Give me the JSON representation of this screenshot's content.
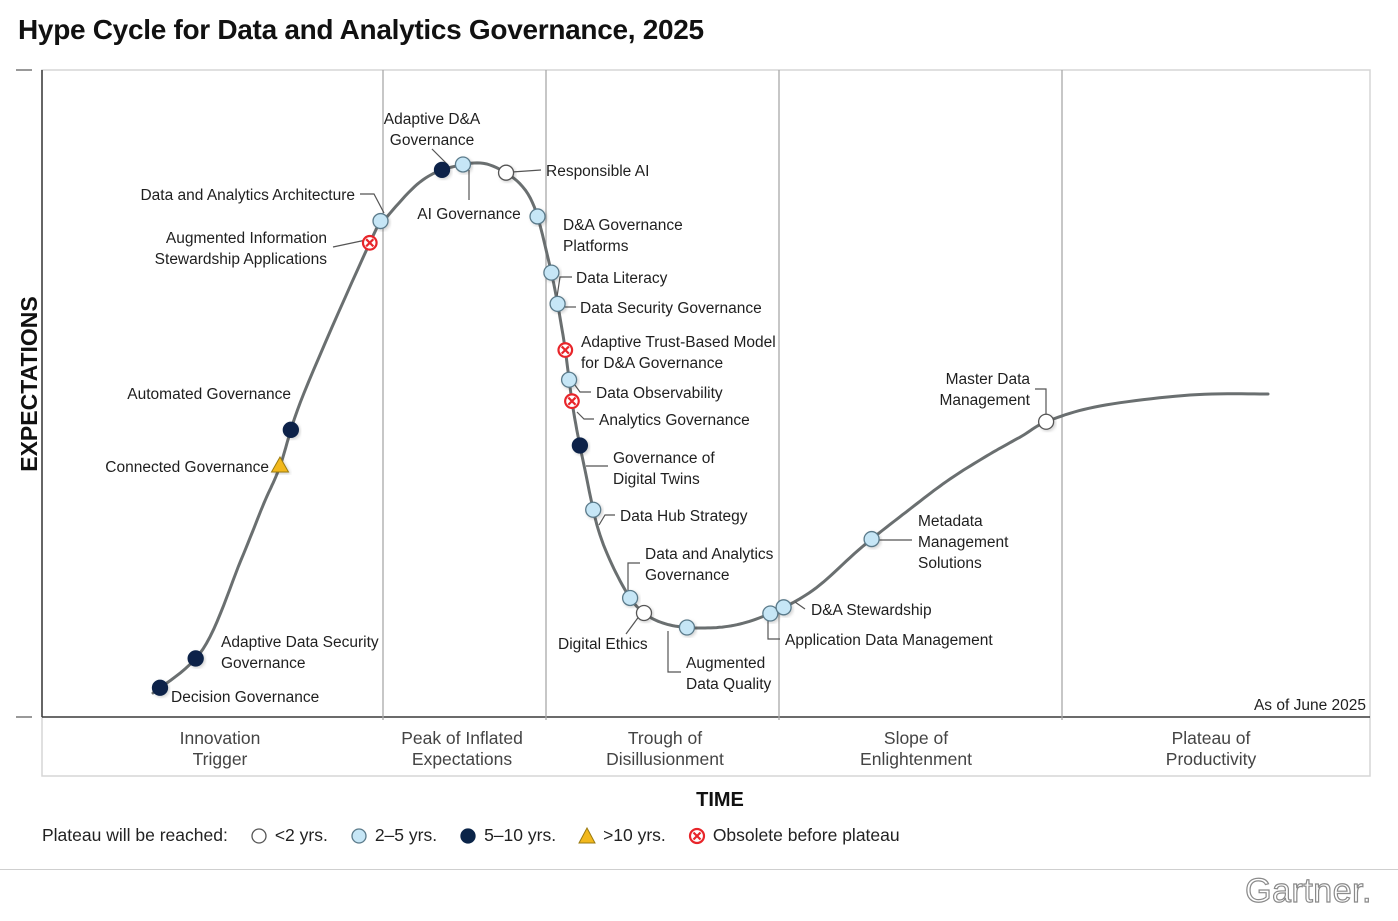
{
  "title": "Hype Cycle for Data and Analytics Governance, 2025",
  "chart_data": {
    "type": "hype-cycle",
    "title": "Hype Cycle for Data and Analytics Governance, 2025",
    "ylabel": "EXPECTATIONS",
    "xlabel": "TIME",
    "as_of": "As of June 2025",
    "phases": [
      {
        "lines": [
          "Innovation",
          "Trigger"
        ]
      },
      {
        "lines": [
          "Peak of Inflated",
          "Expectations"
        ]
      },
      {
        "lines": [
          "Trough of",
          "Disillusionment"
        ]
      },
      {
        "lines": [
          "Slope of",
          "Enlightenment"
        ]
      },
      {
        "lines": [
          "Plateau of",
          "Productivity"
        ]
      }
    ],
    "legend": {
      "prefix": "Plateau will be reached:",
      "items": [
        {
          "key": "lt2",
          "label": "<2 yrs."
        },
        {
          "key": "2to5",
          "label": "2–5 yrs."
        },
        {
          "key": "5to10",
          "label": "5–10 yrs."
        },
        {
          "key": "gt10",
          "label": ">10 yrs."
        },
        {
          "key": "obsolete",
          "label": "Obsolete before plateau"
        }
      ]
    },
    "colors": {
      "lt2": "#ffffff",
      "2to5": "#c6e6f6",
      "5to10": "#0a2448",
      "gt10": "#f2b81c",
      "obsolete": "#e8252a",
      "curve": "#6a6f70",
      "grid": "#a9a9a9"
    },
    "technologies": [
      {
        "name": "Decision Governance",
        "lines": [
          "Decision Governance"
        ],
        "plateau": "5to10",
        "position": 0.4
      },
      {
        "name": "Adaptive Data Security Governance",
        "lines": [
          "Adaptive Data Security",
          "Governance"
        ],
        "plateau": "5to10",
        "position": 1.7
      },
      {
        "name": "Connected Governance",
        "lines": [
          "Connected Governance"
        ],
        "plateau": "gt10",
        "position": 8.0
      },
      {
        "name": "Automated Governance",
        "lines": [
          "Automated Governance"
        ],
        "plateau": "5to10",
        "position": 9.2
      },
      {
        "name": "Augmented Information Stewardship Applications",
        "lines": [
          "Augmented Information",
          "Stewardship Applications"
        ],
        "plateau": "obsolete",
        "position": 11.9
      },
      {
        "name": "Data and Analytics Architecture",
        "lines": [
          "Data and Analytics Architecture"
        ],
        "plateau": "2to5",
        "position": 12.4
      },
      {
        "name": "Adaptive D&A Governance",
        "lines": [
          "Adaptive D&A",
          "Governance"
        ],
        "plateau": "5to10",
        "position": 14.7
      },
      {
        "name": "AI Governance",
        "lines": [
          "AI Governance"
        ],
        "plateau": "2to5",
        "position": 15.3
      },
      {
        "name": "Responsible AI",
        "lines": [
          "Responsible AI"
        ],
        "plateau": "lt2",
        "position": 16.4
      },
      {
        "name": "D&A Governance Platforms",
        "lines": [
          "D&A Governance",
          "Platforms"
        ],
        "plateau": "2to5",
        "position": 17.4
      },
      {
        "name": "Data Literacy",
        "lines": [
          "Data Literacy"
        ],
        "plateau": "2to5",
        "position": 18.2
      },
      {
        "name": "Data Security Governance",
        "lines": [
          "Data Security Governance"
        ],
        "plateau": "2to5",
        "position": 18.6
      },
      {
        "name": "Adaptive Trust-Based Model for D&A Governance",
        "lines": [
          "Adaptive Trust-Based Model",
          "for D&A Governance"
        ],
        "plateau": "obsolete",
        "position": 19.2
      },
      {
        "name": "Data Observability",
        "lines": [
          "Data Observability"
        ],
        "plateau": "2to5",
        "position": 19.6
      },
      {
        "name": "Analytics Governance",
        "lines": [
          "Analytics Governance"
        ],
        "plateau": "obsolete",
        "position": 19.9
      },
      {
        "name": "Governance of Digital Twins",
        "lines": [
          "Governance of",
          "Digital Twins"
        ],
        "plateau": "5to10",
        "position": 20.6
      },
      {
        "name": "Data Hub Strategy",
        "lines": [
          "Data Hub Strategy"
        ],
        "plateau": "2to5",
        "position": 21.6
      },
      {
        "name": "Data and Analytics Governance",
        "lines": [
          "Data and Analytics",
          "Governance"
        ],
        "plateau": "2to5",
        "position": 23.3
      },
      {
        "name": "Digital Ethics",
        "lines": [
          "Digital Ethics"
        ],
        "plateau": "lt2",
        "position": 24.0
      },
      {
        "name": "Augmented Data Quality",
        "lines": [
          "Augmented",
          "Data Quality"
        ],
        "plateau": "2to5",
        "position": 25.5
      },
      {
        "name": "Application Data Management",
        "lines": [
          "Application Data Management"
        ],
        "plateau": "2to5",
        "position": 29.6
      },
      {
        "name": "D&A Stewardship",
        "lines": [
          "D&A Stewardship"
        ],
        "plateau": "2to5",
        "position": 30.3
      },
      {
        "name": "Metadata Management Solutions",
        "lines": [
          "Metadata",
          "Management",
          "Solutions"
        ],
        "plateau": "2to5",
        "position": 34.4
      },
      {
        "name": "Master Data Management",
        "lines": [
          "Master Data",
          "Management"
        ],
        "plateau": "lt2",
        "position": 43.9
      }
    ]
  },
  "brand": "Gartner."
}
